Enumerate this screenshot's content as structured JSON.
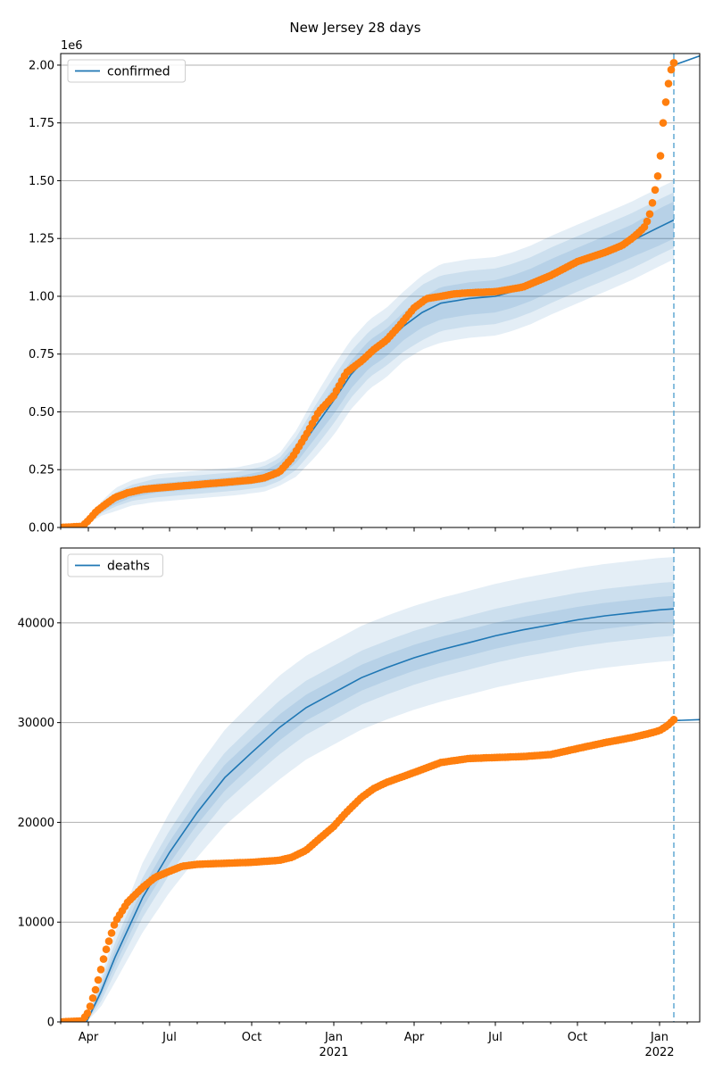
{
  "title": "New Jersey 28 days",
  "colors": {
    "model": "#1f77b4",
    "observed": "#ff7f0e",
    "band": "#1f77b4",
    "grid": "#b0b0b0",
    "cutoff": "#6aaed6"
  },
  "time_axis": {
    "range": [
      "2020-03-01",
      "2022-02-15"
    ],
    "cutoff_date": "2022-01-17",
    "major_ticks": [
      {
        "date": "2020-04-01",
        "label": "Apr",
        "year": ""
      },
      {
        "date": "2020-07-01",
        "label": "Jul",
        "year": ""
      },
      {
        "date": "2020-10-01",
        "label": "Oct",
        "year": ""
      },
      {
        "date": "2021-01-01",
        "label": "Jan",
        "year": "2021"
      },
      {
        "date": "2021-04-01",
        "label": "Apr",
        "year": ""
      },
      {
        "date": "2021-07-01",
        "label": "Jul",
        "year": ""
      },
      {
        "date": "2021-10-01",
        "label": "Oct",
        "year": ""
      },
      {
        "date": "2022-01-01",
        "label": "Jan",
        "year": "2022"
      }
    ]
  },
  "chart_data": [
    {
      "type": "line",
      "legend": "confirmed",
      "legend_position": "top-left",
      "grid": "horizontal",
      "y_scale_label": "1e6",
      "ylim": [
        0,
        2.05
      ],
      "y_ticks": [
        {
          "value": 0,
          "label": "0.00"
        },
        {
          "value": 0.25,
          "label": "0.25"
        },
        {
          "value": 0.5,
          "label": "0.50"
        },
        {
          "value": 0.75,
          "label": "0.75"
        },
        {
          "value": 1.0,
          "label": "1.00"
        },
        {
          "value": 1.25,
          "label": "1.25"
        },
        {
          "value": 1.5,
          "label": "1.50"
        },
        {
          "value": 1.75,
          "label": "1.75"
        },
        {
          "value": 2.0,
          "label": "2.00"
        }
      ],
      "model": {
        "x": [
          "2020-03-01",
          "2020-03-28",
          "2020-04-15",
          "2020-05-01",
          "2020-05-20",
          "2020-06-15",
          "2020-07-15",
          "2020-08-15",
          "2020-09-15",
          "2020-10-15",
          "2020-11-01",
          "2020-11-20",
          "2020-12-10",
          "2021-01-01",
          "2021-01-20",
          "2021-02-10",
          "2021-03-01",
          "2021-03-20",
          "2021-04-10",
          "2021-05-01",
          "2021-06-01",
          "2021-07-01",
          "2021-07-20",
          "2021-08-10",
          "2021-09-01",
          "2021-10-01",
          "2021-11-01",
          "2021-12-01",
          "2022-01-01",
          "2022-01-17"
        ],
        "y": [
          0.0,
          0.005,
          0.08,
          0.12,
          0.15,
          0.17,
          0.18,
          0.19,
          0.2,
          0.22,
          0.25,
          0.32,
          0.43,
          0.55,
          0.66,
          0.75,
          0.8,
          0.87,
          0.93,
          0.97,
          0.99,
          1.0,
          1.02,
          1.05,
          1.09,
          1.14,
          1.19,
          1.24,
          1.3,
          1.33
        ],
        "bands": {
          "inner": [
            0.0,
            0.0,
            0.01,
            0.02,
            0.02,
            0.02,
            0.02,
            0.02,
            0.02,
            0.025,
            0.03,
            0.04,
            0.05,
            0.06,
            0.06,
            0.06,
            0.06,
            0.06,
            0.065,
            0.07,
            0.07,
            0.07,
            0.07,
            0.07,
            0.07,
            0.07,
            0.07,
            0.07,
            0.08,
            0.08
          ],
          "middle": [
            0.0,
            0.0,
            0.02,
            0.03,
            0.035,
            0.04,
            0.04,
            0.04,
            0.04,
            0.045,
            0.05,
            0.07,
            0.09,
            0.1,
            0.1,
            0.1,
            0.1,
            0.11,
            0.12,
            0.12,
            0.12,
            0.12,
            0.12,
            0.12,
            0.12,
            0.12,
            0.12,
            0.12,
            0.12,
            0.12
          ],
          "outer": [
            0.0,
            0.0,
            0.03,
            0.05,
            0.055,
            0.06,
            0.06,
            0.06,
            0.06,
            0.065,
            0.07,
            0.1,
            0.13,
            0.15,
            0.15,
            0.15,
            0.15,
            0.15,
            0.16,
            0.17,
            0.17,
            0.17,
            0.17,
            0.17,
            0.17,
            0.17,
            0.17,
            0.17,
            0.17,
            0.17
          ]
        },
        "forecast": {
          "x": [
            "2022-01-17",
            "2022-02-15"
          ],
          "y": [
            2.0,
            2.04
          ]
        }
      },
      "observed": {
        "x": [
          "2020-03-01",
          "2020-03-25",
          "2020-04-01",
          "2020-04-10",
          "2020-04-20",
          "2020-05-01",
          "2020-05-15",
          "2020-06-01",
          "2020-06-15",
          "2020-07-01",
          "2020-07-15",
          "2020-08-01",
          "2020-08-15",
          "2020-09-01",
          "2020-09-15",
          "2020-10-01",
          "2020-10-15",
          "2020-11-01",
          "2020-11-15",
          "2020-12-01",
          "2020-12-15",
          "2021-01-01",
          "2021-01-15",
          "2021-02-01",
          "2021-02-15",
          "2021-03-01",
          "2021-03-15",
          "2021-04-01",
          "2021-04-15",
          "2021-05-01",
          "2021-05-15",
          "2021-06-01",
          "2021-07-01",
          "2021-08-01",
          "2021-09-01",
          "2021-10-01",
          "2021-11-01",
          "2021-11-20",
          "2021-12-01",
          "2021-12-10",
          "2021-12-15",
          "2021-12-20",
          "2021-12-25",
          "2022-01-01",
          "2022-01-05",
          "2022-01-10",
          "2022-01-14",
          "2022-01-17"
        ],
        "y": [
          0.0,
          0.005,
          0.03,
          0.07,
          0.1,
          0.13,
          0.15,
          0.165,
          0.17,
          0.175,
          0.18,
          0.185,
          0.19,
          0.195,
          0.2,
          0.205,
          0.215,
          0.24,
          0.3,
          0.4,
          0.5,
          0.57,
          0.67,
          0.72,
          0.77,
          0.81,
          0.87,
          0.95,
          0.99,
          1.0,
          1.01,
          1.015,
          1.02,
          1.04,
          1.09,
          1.15,
          1.19,
          1.22,
          1.25,
          1.28,
          1.3,
          1.34,
          1.42,
          1.56,
          1.75,
          1.9,
          1.98,
          2.01
        ]
      }
    },
    {
      "type": "line",
      "legend": "deaths",
      "legend_position": "top-left",
      "grid": "horizontal",
      "ylim": [
        0,
        47500
      ],
      "y_ticks": [
        {
          "value": 0,
          "label": "0"
        },
        {
          "value": 10000,
          "label": "10000"
        },
        {
          "value": 20000,
          "label": "20000"
        },
        {
          "value": 30000,
          "label": "30000"
        },
        {
          "value": 40000,
          "label": "40000"
        }
      ],
      "model": {
        "x": [
          "2020-03-01",
          "2020-03-30",
          "2020-04-15",
          "2020-05-01",
          "2020-06-01",
          "2020-07-01",
          "2020-08-01",
          "2020-09-01",
          "2020-10-01",
          "2020-11-01",
          "2020-12-01",
          "2021-01-01",
          "2021-02-01",
          "2021-03-01",
          "2021-04-01",
          "2021-05-01",
          "2021-06-01",
          "2021-07-01",
          "2021-08-01",
          "2021-09-01",
          "2021-10-01",
          "2021-11-01",
          "2021-12-01",
          "2022-01-01",
          "2022-01-17"
        ],
        "y": [
          0,
          0,
          3000,
          6500,
          12500,
          17000,
          21000,
          24500,
          27000,
          29500,
          31500,
          33000,
          34500,
          35500,
          36500,
          37300,
          38000,
          38700,
          39300,
          39800,
          40300,
          40700,
          41000,
          41300,
          41400
        ],
        "bands": {
          "inner": [
            0,
            0,
            500,
            800,
            1000,
            1100,
            1200,
            1300,
            1300,
            1300,
            1300,
            1300,
            1300,
            1300,
            1300,
            1300,
            1300,
            1300,
            1300,
            1300,
            1300,
            1300,
            1300,
            1300,
            1300
          ],
          "middle": [
            0,
            0,
            1000,
            1500,
            2000,
            2200,
            2400,
            2500,
            2600,
            2700,
            2700,
            2700,
            2700,
            2700,
            2700,
            2700,
            2700,
            2700,
            2700,
            2700,
            2700,
            2700,
            2700,
            2700,
            2700
          ],
          "outer": [
            0,
            0,
            1500,
            2500,
            3500,
            4000,
            4500,
            4800,
            5000,
            5200,
            5200,
            5200,
            5200,
            5200,
            5200,
            5200,
            5200,
            5200,
            5200,
            5200,
            5200,
            5200,
            5200,
            5200,
            5200
          ]
        },
        "forecast": {
          "x": [
            "2022-01-17",
            "2022-02-15"
          ],
          "y": [
            30200,
            30300
          ]
        }
      },
      "observed": {
        "x": [
          "2020-03-01",
          "2020-03-25",
          "2020-04-01",
          "2020-04-10",
          "2020-04-20",
          "2020-05-01",
          "2020-05-15",
          "2020-06-01",
          "2020-06-15",
          "2020-07-01",
          "2020-07-15",
          "2020-08-01",
          "2020-09-01",
          "2020-10-01",
          "2020-11-01",
          "2020-11-15",
          "2020-12-01",
          "2020-12-15",
          "2021-01-01",
          "2021-01-15",
          "2021-02-01",
          "2021-02-15",
          "2021-03-01",
          "2021-04-01",
          "2021-05-01",
          "2021-06-01",
          "2021-07-01",
          "2021-08-01",
          "2021-09-01",
          "2021-10-01",
          "2021-11-01",
          "2021-12-01",
          "2021-12-20",
          "2022-01-01",
          "2022-01-10",
          "2022-01-17"
        ],
        "y": [
          0,
          100,
          1000,
          3500,
          7000,
          10000,
          12000,
          13500,
          14500,
          15100,
          15600,
          15800,
          15900,
          16000,
          16200,
          16500,
          17200,
          18300,
          19600,
          21000,
          22500,
          23400,
          24000,
          25000,
          26000,
          26400,
          26500,
          26600,
          26800,
          27400,
          28000,
          28500,
          28900,
          29200,
          29700,
          30300
        ]
      }
    }
  ]
}
